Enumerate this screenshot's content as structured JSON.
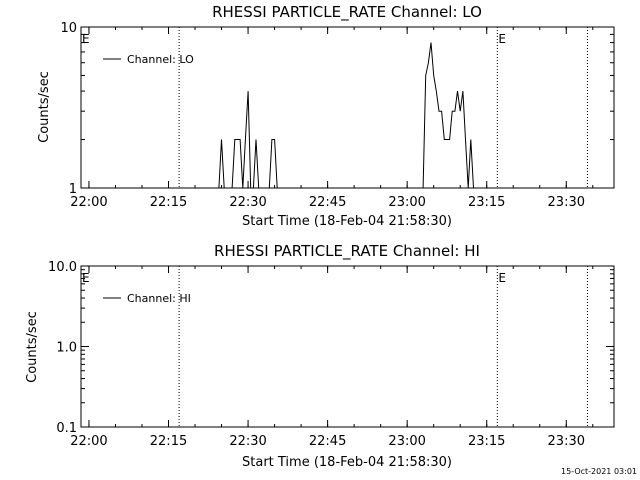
{
  "chart_data": [
    {
      "type": "line",
      "title": "RHESSI PARTICLE_RATE Channel: LO",
      "xlabel": "Start Time (18-Feb-04 21:58:30)",
      "ylabel": "Counts/sec",
      "yscale": "log",
      "xlim": [
        "21:58:30",
        "23:39:00"
      ],
      "ylim": [
        1,
        10
      ],
      "x_tick_labels": [
        "22:00",
        "22:15",
        "22:30",
        "22:45",
        "23:00",
        "23:15",
        "23:30"
      ],
      "y_tick_labels": [
        "1",
        "10"
      ],
      "grid": false,
      "legend": "top-left",
      "series": [
        {
          "name": "Channel: LO",
          "color": "#000000",
          "x": [
            "21:58:30",
            "22:24:30",
            "22:25:00",
            "22:25:30",
            "22:26:00",
            "22:26:30",
            "22:27:00",
            "22:27:30",
            "22:28:00",
            "22:28:30",
            "22:29:00",
            "22:29:30",
            "22:30:00",
            "22:30:30",
            "22:31:00",
            "22:31:30",
            "22:32:00",
            "22:32:30",
            "22:33:00",
            "22:33:30",
            "22:34:00",
            "22:34:30",
            "22:35:00",
            "22:35:30",
            "22:36:00",
            "22:36:30",
            "22:37:00",
            "23:03:00",
            "23:03:30",
            "23:04:00",
            "23:04:30",
            "23:05:00",
            "23:05:30",
            "23:06:00",
            "23:06:30",
            "23:07:00",
            "23:07:30",
            "23:08:00",
            "23:08:30",
            "23:09:00",
            "23:09:30",
            "23:10:00",
            "23:10:30",
            "23:11:00",
            "23:11:30",
            "23:12:00",
            "23:12:30",
            "23:13:00",
            "23:13:30",
            "23:39:00"
          ],
          "values": [
            1,
            1,
            2,
            1,
            1,
            1,
            1,
            2,
            2,
            2,
            1,
            2,
            4,
            1,
            1,
            2,
            1,
            1,
            1,
            1,
            1,
            2,
            2,
            1,
            1,
            1,
            1,
            1,
            5,
            6,
            8,
            5,
            4,
            3,
            3,
            2,
            2,
            2,
            3,
            3,
            4,
            3,
            4,
            2,
            1,
            2,
            1,
            1,
            1,
            1
          ]
        }
      ],
      "annotations": [
        {
          "label": "E",
          "x": "21:58:30"
        },
        {
          "label": "E",
          "x": "23:17:00"
        }
      ],
      "vlines": [
        "22:17:00",
        "23:17:00",
        "23:34:00"
      ]
    },
    {
      "type": "line",
      "title": "RHESSI PARTICLE_RATE Channel: HI",
      "xlabel": "Start Time (18-Feb-04 21:58:30)",
      "ylabel": "Counts/sec",
      "yscale": "log",
      "xlim": [
        "21:58:30",
        "23:39:00"
      ],
      "ylim": [
        0.1,
        10
      ],
      "x_tick_labels": [
        "22:00",
        "22:15",
        "22:30",
        "22:45",
        "23:00",
        "23:15",
        "23:30"
      ],
      "y_tick_labels": [
        "0.1",
        "1.0",
        "10.0"
      ],
      "grid": false,
      "legend": "top-left",
      "series": [
        {
          "name": "Channel: HI",
          "color": "#000000",
          "x": [],
          "values": []
        }
      ],
      "annotations": [
        {
          "label": "E",
          "x": "21:58:30"
        },
        {
          "label": "E",
          "x": "23:17:00"
        }
      ],
      "vlines": [
        "22:17:00",
        "23:17:00",
        "23:34:00"
      ]
    }
  ],
  "timestamp": "15-Oct-2021 03:01"
}
